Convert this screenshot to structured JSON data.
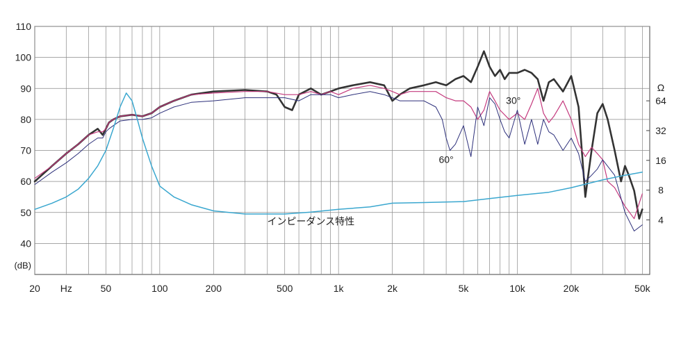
{
  "chart_data": {
    "type": "line",
    "x_scale": "log",
    "xlim": [
      20,
      55000
    ],
    "ylim": [
      30,
      110
    ],
    "grid": true,
    "y_ticks": [
      40,
      50,
      60,
      70,
      80,
      90,
      100,
      110
    ],
    "y_unit_label": "(dB)",
    "x_ticks": [
      {
        "value": 20,
        "label": "20"
      },
      {
        "value": 30,
        "label": "Hz"
      },
      {
        "value": 50,
        "label": "50"
      },
      {
        "value": 100,
        "label": "100"
      },
      {
        "value": 200,
        "label": "200"
      },
      {
        "value": 500,
        "label": "500"
      },
      {
        "value": 1000,
        "label": "1k"
      },
      {
        "value": 2000,
        "label": "2k"
      },
      {
        "value": 5000,
        "label": "5k"
      },
      {
        "value": 10000,
        "label": "10k"
      },
      {
        "value": 20000,
        "label": "20k"
      },
      {
        "value": 50000,
        "label": "50k"
      }
    ],
    "right_axis": {
      "unit_label": "Ω",
      "scale": "log",
      "ticks": [
        {
          "value": 4,
          "label": "4"
        },
        {
          "value": 8,
          "label": "8"
        },
        {
          "value": 16,
          "label": "16"
        },
        {
          "value": 32,
          "label": "32"
        },
        {
          "value": 64,
          "label": "64"
        }
      ],
      "db_per_octave": 9.6,
      "ref_ohm": 64,
      "ref_db": 86
    },
    "annotations": [
      {
        "text": "30°",
        "x": 9500,
        "y": 85
      },
      {
        "text": "60°",
        "x": 4000,
        "y": 66
      },
      {
        "text": "インピーダンス特性",
        "x": 700,
        "y": 46
      }
    ],
    "series": [
      {
        "color": "#333333",
        "stroke_width": 2.6,
        "x": [
          20,
          25,
          30,
          35,
          40,
          45,
          48,
          50,
          52,
          55,
          60,
          70,
          80,
          90,
          100,
          120,
          150,
          200,
          300,
          400,
          450,
          500,
          550,
          600,
          700,
          800,
          900,
          1000,
          1200,
          1500,
          1800,
          2000,
          2200,
          2500,
          3000,
          3500,
          4000,
          4500,
          5000,
          5500,
          6000,
          6500,
          7000,
          7500,
          8000,
          8500,
          9000,
          10000,
          11000,
          12000,
          13000,
          14000,
          15000,
          16000,
          18000,
          20000,
          22000,
          24000,
          26000,
          28000,
          30000,
          32000,
          35000,
          38000,
          40000,
          42000,
          45000,
          48000,
          50000
        ],
        "y": [
          60,
          65,
          69,
          72,
          75,
          77,
          75,
          77,
          79,
          80,
          81,
          81.5,
          81,
          82,
          84,
          86,
          88,
          89,
          89.5,
          89,
          88,
          84,
          83,
          88,
          90,
          88,
          89,
          90,
          91,
          92,
          91,
          86,
          88,
          90,
          91,
          92,
          91,
          93,
          94,
          92,
          97,
          102,
          97,
          94,
          96,
          93,
          95,
          95,
          96,
          95,
          93,
          86,
          92,
          93,
          89,
          94,
          84,
          55,
          70,
          82,
          85,
          80,
          70,
          60,
          65,
          62,
          57,
          48,
          51
        ]
      },
      {
        "color": "#c4397d",
        "stroke_width": 1.2,
        "x": [
          20,
          25,
          30,
          35,
          40,
          45,
          48,
          50,
          52,
          55,
          60,
          70,
          80,
          90,
          100,
          120,
          150,
          200,
          300,
          400,
          500,
          600,
          700,
          800,
          900,
          1000,
          1200,
          1500,
          1800,
          2000,
          2200,
          2500,
          3000,
          3500,
          4000,
          4500,
          5000,
          5500,
          6000,
          6500,
          7000,
          7500,
          8000,
          9000,
          10000,
          11000,
          12000,
          13000,
          14000,
          15000,
          16000,
          18000,
          20000,
          22000,
          24000,
          26000,
          28000,
          30000,
          32000,
          35000,
          40000,
          45000,
          50000
        ],
        "y": [
          61,
          65,
          69,
          72,
          75,
          76,
          76,
          77,
          79,
          80,
          81,
          81.5,
          81,
          82,
          84,
          86,
          88,
          88.5,
          89,
          89,
          88,
          88,
          89,
          88,
          89,
          88,
          90,
          91,
          90,
          89,
          88,
          89,
          89,
          89,
          87,
          86,
          86,
          84,
          80,
          83,
          89,
          86,
          83,
          80,
          82,
          80,
          85,
          90,
          82,
          79,
          81,
          86,
          80,
          72,
          68,
          71,
          69,
          67,
          60,
          58,
          52,
          48,
          56
        ]
      },
      {
        "color": "#2c2f7a",
        "stroke_width": 1.0,
        "x": [
          20,
          25,
          30,
          35,
          40,
          45,
          48,
          50,
          52,
          55,
          60,
          70,
          80,
          90,
          100,
          120,
          150,
          200,
          300,
          400,
          500,
          600,
          700,
          800,
          900,
          1000,
          1200,
          1500,
          1800,
          2000,
          2200,
          2500,
          3000,
          3500,
          3800,
          4000,
          4200,
          4500,
          5000,
          5500,
          6000,
          6500,
          7000,
          7500,
          8000,
          8500,
          9000,
          10000,
          11000,
          12000,
          13000,
          14000,
          15000,
          16000,
          18000,
          20000,
          22000,
          24000,
          26000,
          28000,
          30000,
          35000,
          40000,
          45000,
          50000
        ],
        "y": [
          59,
          63,
          66,
          69,
          72,
          74,
          74,
          76,
          77,
          78,
          79.5,
          80,
          80,
          80.5,
          82,
          84,
          85.5,
          86,
          87,
          87,
          87,
          86,
          88,
          88,
          88,
          87,
          88,
          89,
          88,
          87,
          86,
          86,
          86,
          84,
          80,
          74,
          70,
          72,
          78,
          68,
          84,
          78,
          87,
          85,
          80,
          76,
          74,
          83,
          72,
          80,
          72,
          80,
          76,
          75,
          70,
          74,
          69,
          60,
          62,
          64,
          67,
          62,
          50,
          44,
          46
        ]
      },
      {
        "color": "#3aa7cf",
        "stroke_width": 1.5,
        "x": [
          20,
          25,
          30,
          35,
          40,
          45,
          50,
          55,
          60,
          65,
          70,
          75,
          80,
          90,
          100,
          120,
          150,
          200,
          300,
          400,
          500,
          700,
          1000,
          1500,
          2000,
          3000,
          5000,
          7000,
          10000,
          15000,
          20000,
          30000,
          40000,
          50000
        ],
        "y": [
          51,
          53,
          55,
          57.5,
          61,
          65,
          70,
          77,
          84,
          88.5,
          86,
          80,
          74,
          65,
          58.5,
          55,
          52.5,
          50.5,
          49.5,
          49.5,
          49.5,
          50.1,
          51,
          51.8,
          53,
          53.2,
          53.5,
          54.5,
          55.5,
          56.5,
          58,
          60.5,
          62,
          63
        ]
      }
    ]
  }
}
